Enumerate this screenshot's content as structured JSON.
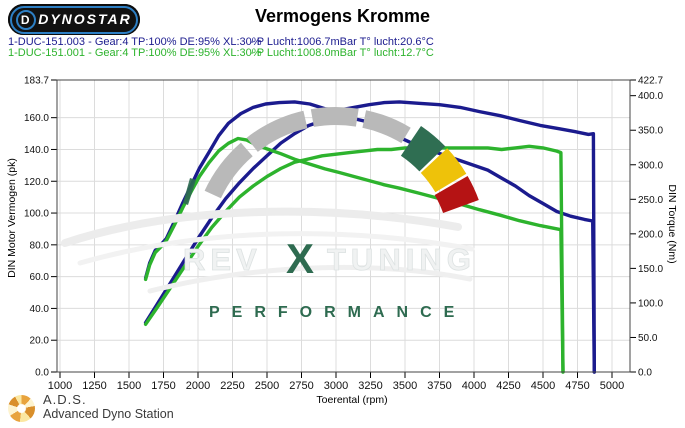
{
  "logo": {
    "brand": "Dynostar"
  },
  "header": {
    "title": "Vermogens Kromme"
  },
  "runs": [
    {
      "label": "1-DUC-151.003 - Gear:4 TP:100% DE:95% XL:30%",
      "conditions": "- P Lucht:1006.7mBar T° lucht:20.6°C",
      "color": "#1b1b8e"
    },
    {
      "label": "1-DUC-151.001 - Gear:4 TP:100% DE:95% XL:30%",
      "conditions": "- P Lucht:1008.0mBar T° lucht:12.7°C",
      "color": "#2db32d"
    }
  ],
  "chart_data": {
    "type": "line",
    "title": "Vermogens Kromme",
    "xlabel": "Toerental (rpm)",
    "xlim": [
      1000,
      5130
    ],
    "grid": true,
    "x_ticks": [
      1000,
      1250,
      1500,
      1750,
      2000,
      2250,
      2500,
      2750,
      3000,
      3250,
      3500,
      3750,
      4000,
      4250,
      4500,
      4750,
      5000
    ],
    "left_axis": {
      "label": "DIN Motor Vermogen (pk)",
      "max": 183.7,
      "tick_labels": [
        "183.7",
        "160.0",
        "140.0",
        "120.0",
        "100.0",
        "80.0",
        "60.0",
        "40.0",
        "20.0",
        "0.0"
      ]
    },
    "right_axis": {
      "label": "DIN Torque (Nm)",
      "max": 422.7,
      "tick_labels": [
        "422.7",
        "400.0",
        "350.0",
        "300.0",
        "250.0",
        "200.0",
        "150.0",
        "100.0",
        "50.0",
        "0.0"
      ]
    },
    "series": [
      {
        "name": "torque-run-003",
        "axis": "right",
        "color": "#1b1b8e",
        "width": 3.4,
        "points": [
          [
            1620,
            136
          ],
          [
            1650,
            158
          ],
          [
            1690,
            176
          ],
          [
            1730,
            184
          ],
          [
            1770,
            193
          ],
          [
            1830,
            218
          ],
          [
            1890,
            245
          ],
          [
            1950,
            270
          ],
          [
            2010,
            295
          ],
          [
            2080,
            318
          ],
          [
            2150,
            342
          ],
          [
            2220,
            360
          ],
          [
            2310,
            374
          ],
          [
            2400,
            383
          ],
          [
            2490,
            388
          ],
          [
            2590,
            390
          ],
          [
            2700,
            391
          ],
          [
            2810,
            388
          ],
          [
            2920,
            381
          ],
          [
            3020,
            379
          ],
          [
            3130,
            383
          ],
          [
            3240,
            387
          ],
          [
            3350,
            390
          ],
          [
            3460,
            391
          ],
          [
            3600,
            389
          ],
          [
            3750,
            387
          ],
          [
            3900,
            383
          ],
          [
            4040,
            377
          ],
          [
            4190,
            371
          ],
          [
            4330,
            364
          ],
          [
            4480,
            357
          ],
          [
            4620,
            352
          ],
          [
            4730,
            348
          ],
          [
            4830,
            344
          ],
          [
            4865,
            345
          ],
          [
            4872,
            0
          ]
        ]
      },
      {
        "name": "power-run-003",
        "axis": "left",
        "color": "#1b1b8e",
        "width": 3.4,
        "points": [
          [
            1620,
            31
          ],
          [
            1700,
            42
          ],
          [
            1800,
            56
          ],
          [
            1900,
            70
          ],
          [
            2000,
            84
          ],
          [
            2100,
            97
          ],
          [
            2200,
            109
          ],
          [
            2300,
            119
          ],
          [
            2400,
            128
          ],
          [
            2500,
            136
          ],
          [
            2600,
            144
          ],
          [
            2700,
            150
          ],
          [
            2800,
            155
          ],
          [
            2900,
            158
          ],
          [
            3000,
            160
          ],
          [
            3100,
            160
          ],
          [
            3200,
            158
          ],
          [
            3300,
            154
          ],
          [
            3400,
            150
          ],
          [
            3500,
            146
          ],
          [
            3600,
            142
          ],
          [
            3700,
            139
          ],
          [
            3800,
            136
          ],
          [
            3900,
            133
          ],
          [
            4000,
            130
          ],
          [
            4100,
            127
          ],
          [
            4200,
            122
          ],
          [
            4300,
            117
          ],
          [
            4400,
            111
          ],
          [
            4500,
            106
          ],
          [
            4600,
            101
          ],
          [
            4700,
            98
          ],
          [
            4800,
            96
          ],
          [
            4860,
            95
          ],
          [
            4872,
            0
          ]
        ]
      },
      {
        "name": "torque-run-001",
        "axis": "right",
        "color": "#2db32d",
        "width": 3.4,
        "points": [
          [
            1620,
            134
          ],
          [
            1650,
            155
          ],
          [
            1690,
            173
          ],
          [
            1730,
            181
          ],
          [
            1770,
            190
          ],
          [
            1830,
            213
          ],
          [
            1890,
            238
          ],
          [
            1950,
            261
          ],
          [
            2010,
            283
          ],
          [
            2080,
            303
          ],
          [
            2150,
            320
          ],
          [
            2220,
            331
          ],
          [
            2290,
            338
          ],
          [
            2350,
            336
          ],
          [
            2400,
            331
          ],
          [
            2500,
            323
          ],
          [
            2600,
            316
          ],
          [
            2700,
            308
          ],
          [
            2810,
            301
          ],
          [
            2920,
            294
          ],
          [
            3020,
            289
          ],
          [
            3130,
            283
          ],
          [
            3240,
            277
          ],
          [
            3350,
            271
          ],
          [
            3460,
            266
          ],
          [
            3600,
            259
          ],
          [
            3750,
            251
          ],
          [
            3900,
            243
          ],
          [
            4040,
            235
          ],
          [
            4190,
            227
          ],
          [
            4330,
            219
          ],
          [
            4480,
            212
          ],
          [
            4580,
            208
          ],
          [
            4630,
            206
          ],
          [
            4645,
            0
          ]
        ]
      },
      {
        "name": "power-run-001",
        "axis": "left",
        "color": "#2db32d",
        "width": 3.4,
        "points": [
          [
            1620,
            30
          ],
          [
            1700,
            40
          ],
          [
            1800,
            53
          ],
          [
            1900,
            66
          ],
          [
            2000,
            79
          ],
          [
            2100,
            91
          ],
          [
            2200,
            101
          ],
          [
            2300,
            110
          ],
          [
            2400,
            117
          ],
          [
            2500,
            123
          ],
          [
            2600,
            128
          ],
          [
            2700,
            132
          ],
          [
            2800,
            134
          ],
          [
            2900,
            136
          ],
          [
            3000,
            137
          ],
          [
            3100,
            138
          ],
          [
            3200,
            139
          ],
          [
            3300,
            140
          ],
          [
            3400,
            140
          ],
          [
            3500,
            141
          ],
          [
            3600,
            141
          ],
          [
            3700,
            141
          ],
          [
            3800,
            141
          ],
          [
            3900,
            141
          ],
          [
            4000,
            141
          ],
          [
            4100,
            141
          ],
          [
            4200,
            140
          ],
          [
            4300,
            141
          ],
          [
            4400,
            142
          ],
          [
            4500,
            141
          ],
          [
            4550,
            140
          ],
          [
            4600,
            139
          ],
          [
            4630,
            138
          ],
          [
            4645,
            0
          ]
        ]
      }
    ]
  },
  "watermark": {
    "left": "REV",
    "x": "X",
    "right": "TUNING",
    "bottom": "PERFORMANCE",
    "accent": "#2e6b50",
    "light": "#f0f2f2",
    "gauge": {
      "gray": "#b9b9b9",
      "green": "#2f6e52",
      "yellow": "#eec20a",
      "red": "#b51314"
    }
  },
  "footer": {
    "abbr": "A.D.S.",
    "name": "Advanced Dyno Station"
  }
}
